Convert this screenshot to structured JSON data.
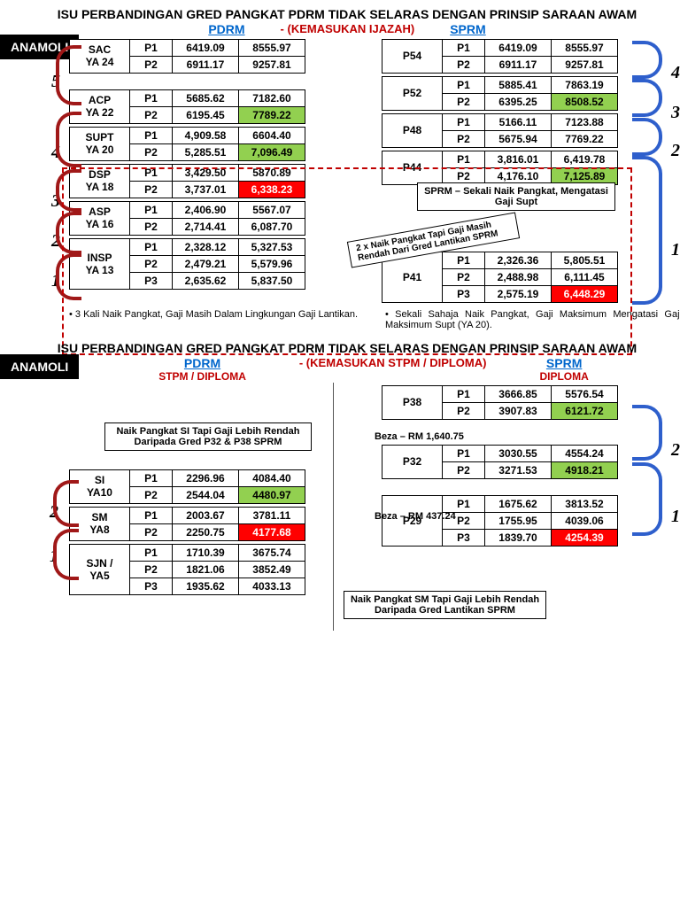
{
  "section1": {
    "title": "ISU PERBANDINGAN GRED PANGKAT PDRM TIDAK SELARAS DENGAN PRINSIP SARAAN AWAM",
    "subtitle": "- (KEMASUKAN IJAZAH)",
    "anamoli": "ANAMOLI",
    "pdrm_label": "PDRM",
    "sprm_label": "SPRM",
    "pdrm_tables": [
      {
        "rank": "SAC",
        "ya": "YA 24",
        "rows": [
          [
            "P1",
            "6419.09",
            "8555.97"
          ],
          [
            "P2",
            "6911.17",
            "9257.81"
          ]
        ]
      },
      {
        "rank": "ACP",
        "ya": "YA 22",
        "rows": [
          [
            "P1",
            "5685.62",
            "7182.60"
          ],
          [
            "P2",
            "6195.45",
            "7789.22"
          ]
        ],
        "hl": [
          [
            1,
            2,
            "green"
          ]
        ]
      },
      {
        "rank": "SUPT",
        "ya": "YA 20",
        "rows": [
          [
            "P1",
            "4,909.58",
            "6604.40"
          ],
          [
            "P2",
            "5,285.51",
            "7,096.49"
          ]
        ],
        "hl": [
          [
            1,
            2,
            "green"
          ]
        ]
      },
      {
        "rank": "DSP",
        "ya": "YA 18",
        "rows": [
          [
            "P1",
            "3,429.50",
            "5870.89"
          ],
          [
            "P2",
            "3,737.01",
            "6,338.23"
          ]
        ],
        "hl": [
          [
            1,
            2,
            "red"
          ]
        ]
      },
      {
        "rank": "ASP",
        "ya": "YA 16",
        "rows": [
          [
            "P1",
            "2,406.90",
            "5567.07"
          ],
          [
            "P2",
            "2,714.41",
            "6,087.70"
          ]
        ]
      },
      {
        "rank": "INSP",
        "ya": "YA 13",
        "rows": [
          [
            "P1",
            "2,328.12",
            "5,327.53"
          ],
          [
            "P2",
            "2,479.21",
            "5,579.96"
          ],
          [
            "P3",
            "2,635.62",
            "5,837.50"
          ]
        ]
      }
    ],
    "sprm_tables": [
      {
        "rank": "P54",
        "rows": [
          [
            "P1",
            "6419.09",
            "8555.97"
          ],
          [
            "P2",
            "6911.17",
            "9257.81"
          ]
        ]
      },
      {
        "rank": "P52",
        "rows": [
          [
            "P1",
            "5885.41",
            "7863.19"
          ],
          [
            "P2",
            "6395.25",
            "8508.52"
          ]
        ],
        "hl": [
          [
            1,
            2,
            "green"
          ]
        ]
      },
      {
        "rank": "P48",
        "rows": [
          [
            "P1",
            "5166.11",
            "7123.88"
          ],
          [
            "P2",
            "5675.94",
            "7769.22"
          ]
        ]
      },
      {
        "rank": "P44",
        "rows": [
          [
            "P1",
            "3,816.01",
            "6,419.78"
          ],
          [
            "P2",
            "4,176.10",
            "7,125.89"
          ]
        ],
        "hl": [
          [
            1,
            2,
            "green"
          ]
        ]
      },
      {
        "rank": "P41",
        "rows": [
          [
            "P1",
            "2,326.36",
            "5,805.51"
          ],
          [
            "P2",
            "2,488.98",
            "6,111.45"
          ],
          [
            "P3",
            "2,575.19",
            "6,448.29"
          ]
        ],
        "hl": [
          [
            2,
            2,
            "red"
          ]
        ]
      }
    ],
    "sprm_note": "SPRM – Sekali Naik Pangkat, Mengatasi Gaji Supt",
    "diag_note": "2 x Naik Pangkat Tapi Gaji Masih Rendah Dari Gred Lantikan SPRM",
    "left_bullet": "3 Kali Naik Pangkat, Gaji Masih Dalam Lingkungan Gaji Lantikan.",
    "right_bullet": "Sekali Sahaja Naik Pangkat, Gaji Maksimum Mengatasi Gaji Maksimum Supt (YA 20).",
    "left_nums": [
      "5",
      "4",
      "3",
      "2",
      "1"
    ],
    "right_nums": [
      "4",
      "3",
      "2",
      "1"
    ]
  },
  "section2": {
    "title": "ISU PERBANDINGAN GRED PANGKAT PDRM TIDAK SELARAS DENGAN PRINSIP SARAAN AWAM",
    "subtitle": "- (KEMASUKAN STPM / DIPLOMA)",
    "anamoli": "ANAMOLI",
    "pdrm_label": "PDRM",
    "pdrm_sub": "STPM / DIPLOMA",
    "sprm_label": "SPRM",
    "sprm_sub": "DIPLOMA",
    "pdrm_tables": [
      {
        "rank": "SI",
        "ya": "YA10",
        "rows": [
          [
            "P1",
            "2296.96",
            "4084.40"
          ],
          [
            "P2",
            "2544.04",
            "4480.97"
          ]
        ],
        "hl": [
          [
            1,
            2,
            "green"
          ]
        ]
      },
      {
        "rank": "SM",
        "ya": "YA8",
        "rows": [
          [
            "P1",
            "2003.67",
            "3781.11"
          ],
          [
            "P2",
            "2250.75",
            "4177.68"
          ]
        ],
        "hl": [
          [
            1,
            2,
            "red"
          ]
        ]
      },
      {
        "rank": "SJN /",
        "ya": "YA5",
        "rows": [
          [
            "P1",
            "1710.39",
            "3675.74"
          ],
          [
            "P2",
            "1821.06",
            "3852.49"
          ],
          [
            "P3",
            "1935.62",
            "4033.13"
          ]
        ]
      }
    ],
    "sprm_tables": [
      {
        "rank": "P38",
        "rows": [
          [
            "P1",
            "3666.85",
            "5576.54"
          ],
          [
            "P2",
            "3907.83",
            "6121.72"
          ]
        ],
        "hl": [
          [
            1,
            2,
            "green"
          ]
        ]
      },
      {
        "rank": "P32",
        "rows": [
          [
            "P1",
            "3030.55",
            "4554.24"
          ],
          [
            "P2",
            "3271.53",
            "4918.21"
          ]
        ],
        "hl": [
          [
            1,
            2,
            "green"
          ]
        ]
      },
      {
        "rank": "P29",
        "rows": [
          [
            "P1",
            "1675.62",
            "3813.52"
          ],
          [
            "P2",
            "1755.95",
            "4039.06"
          ],
          [
            "P3",
            "1839.70",
            "4254.39"
          ]
        ],
        "hl": [
          [
            2,
            2,
            "red"
          ]
        ]
      }
    ],
    "note_top": "Naik Pangkat SI Tapi Gaji Lebih Rendah Daripada Gred P32 & P38 SPRM",
    "note_bottom": "Naik Pangkat SM Tapi Gaji Lebih Rendah Daripada Gred Lantikan SPRM",
    "beza1": "Beza – RM 1,640.75",
    "beza2": "Beza – RM 437.24",
    "left_nums": [
      "2",
      "1"
    ],
    "right_nums": [
      "2",
      "1"
    ]
  }
}
